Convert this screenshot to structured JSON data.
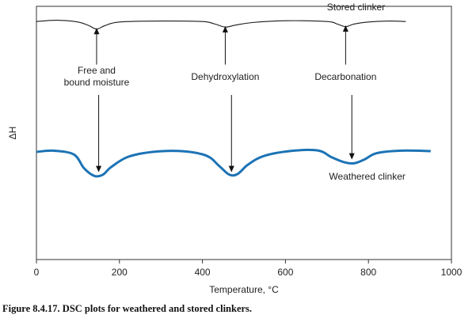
{
  "chart_data": {
    "type": "line",
    "title": "",
    "xlabel": "Temperature, °C",
    "ylabel": "ΔH",
    "xlim": [
      0,
      1000
    ],
    "x_ticks": [
      0,
      200,
      400,
      600,
      800,
      1000
    ],
    "y_ticks": "none",
    "grid": false,
    "series": [
      {
        "name": "Stored clinker",
        "color": "#1a1a1a",
        "points": [
          [
            0,
            0.94
          ],
          [
            50,
            0.945
          ],
          [
            100,
            0.938
          ],
          [
            125,
            0.925
          ],
          [
            145,
            0.91
          ],
          [
            165,
            0.924
          ],
          [
            200,
            0.938
          ],
          [
            300,
            0.942
          ],
          [
            400,
            0.94
          ],
          [
            430,
            0.93
          ],
          [
            455,
            0.918
          ],
          [
            480,
            0.926
          ],
          [
            520,
            0.936
          ],
          [
            600,
            0.943
          ],
          [
            700,
            0.94
          ],
          [
            725,
            0.93
          ],
          [
            745,
            0.92
          ],
          [
            765,
            0.93
          ],
          [
            800,
            0.938
          ],
          [
            850,
            0.942
          ],
          [
            890,
            0.94
          ]
        ]
      },
      {
        "name": "Weathered clinker",
        "color": "#1c73b5",
        "points": [
          [
            0,
            0.425
          ],
          [
            40,
            0.43
          ],
          [
            90,
            0.415
          ],
          [
            115,
            0.36
          ],
          [
            140,
            0.33
          ],
          [
            160,
            0.335
          ],
          [
            180,
            0.365
          ],
          [
            220,
            0.405
          ],
          [
            280,
            0.425
          ],
          [
            350,
            0.428
          ],
          [
            410,
            0.41
          ],
          [
            440,
            0.37
          ],
          [
            465,
            0.335
          ],
          [
            485,
            0.338
          ],
          [
            510,
            0.375
          ],
          [
            550,
            0.41
          ],
          [
            620,
            0.43
          ],
          [
            680,
            0.43
          ],
          [
            710,
            0.405
          ],
          [
            740,
            0.385
          ],
          [
            765,
            0.38
          ],
          [
            790,
            0.395
          ],
          [
            820,
            0.42
          ],
          [
            880,
            0.43
          ],
          [
            950,
            0.428
          ]
        ]
      }
    ],
    "annotations": [
      {
        "text": "Free and",
        "x": 145
      },
      {
        "text": "bound moisture",
        "x": 145
      },
      {
        "text": "Dehydroxylation",
        "x": 455
      },
      {
        "text": "Decarbonation",
        "x": 745
      }
    ],
    "arrows": [
      {
        "x": 145,
        "from_y": 0.77,
        "to_y": 0.915,
        "direction": "up"
      },
      {
        "x": 150,
        "from_y": 0.65,
        "to_y": 0.345,
        "direction": "down"
      },
      {
        "x": 455,
        "from_y": 0.77,
        "to_y": 0.922,
        "direction": "up"
      },
      {
        "x": 470,
        "from_y": 0.65,
        "to_y": 0.345,
        "direction": "down"
      },
      {
        "x": 745,
        "from_y": 0.77,
        "to_y": 0.925,
        "direction": "up"
      },
      {
        "x": 760,
        "from_y": 0.65,
        "to_y": 0.395,
        "direction": "down"
      }
    ],
    "series_label_stored": "Stored clinker",
    "series_label_weathered": "Weathered clinker"
  },
  "caption": "Figure 8.4.17. DSC plots for weathered and stored clinkers."
}
